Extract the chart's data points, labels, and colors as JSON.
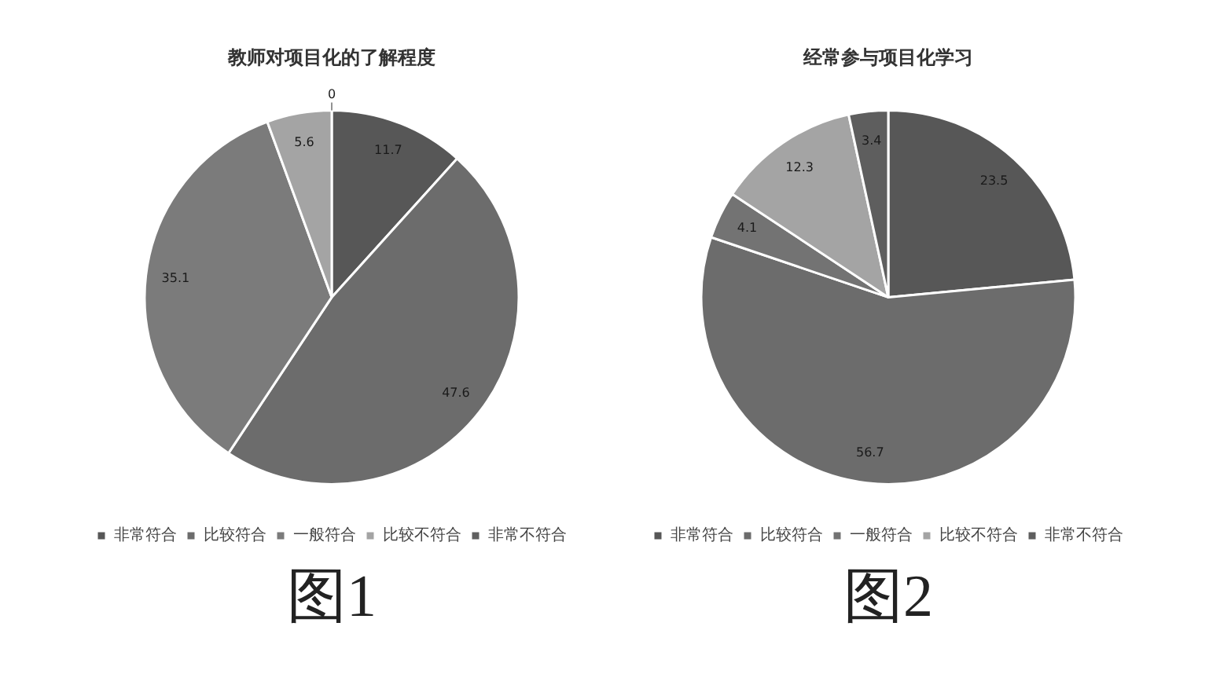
{
  "chart_data": [
    {
      "type": "pie",
      "title": "教师对项目化的了解程度",
      "categories": [
        "非常符合",
        "比较符合",
        "一般符合",
        "比较不符合",
        "非常不符合"
      ],
      "values": [
        11.7,
        47.6,
        35.1,
        5.6,
        0
      ],
      "value_labels": [
        "11.7",
        "47.6",
        "35.1",
        "5.6",
        "0"
      ],
      "colors": [
        "#575757",
        "#6c6c6c",
        "#7b7b7b",
        "#a4a4a4",
        "#606060"
      ],
      "legend": "bottom",
      "annotations": [
        "图1"
      ]
    },
    {
      "type": "pie",
      "title": "经常参与项目化学习",
      "categories": [
        "非常符合",
        "比较符合",
        "一般符合",
        "比较不符合",
        "非常不符合"
      ],
      "values": [
        23.5,
        56.7,
        4.1,
        12.3,
        3.4
      ],
      "colors": [
        "#575757",
        "#6c6c6c",
        "#737373",
        "#a4a4a4",
        "#5e5e5e"
      ],
      "data_labels": true,
      "legend": "bottom",
      "annotations": [
        "图2"
      ]
    }
  ]
}
